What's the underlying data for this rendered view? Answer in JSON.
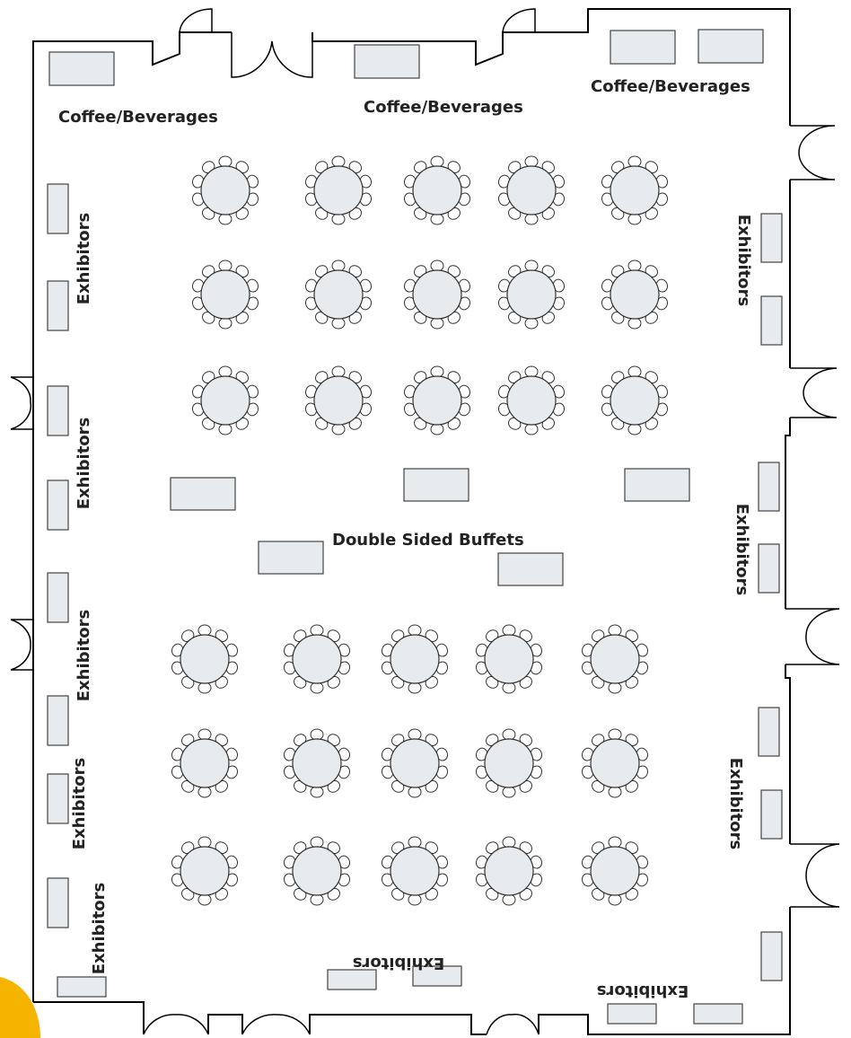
{
  "floor": {
    "labels": {
      "coffee_left": "Coffee/Beverages",
      "coffee_center": "Coffee/Beverages",
      "coffee_right": "Coffee/Beverages",
      "exhibitors_left_1": "Exhibitors",
      "exhibitors_left_2": "Exhibitors",
      "exhibitors_left_3": "Exhibitors",
      "exhibitors_left_4": "Exhibitors",
      "exhibitors_left_5": "Exhibitors",
      "exhibitors_right_1": "Exhibitors",
      "exhibitors_right_2": "Exhibitors",
      "exhibitors_right_3": "Exhibitors",
      "exhibitors_bottom_center": "Exhibitors",
      "exhibitors_bottom_right": "Exhibitors",
      "buffets": "Double Sided Buffets"
    },
    "round_tables": {
      "count": 30,
      "chairs_per_table": 10
    },
    "colors": {
      "table_fill": "#e8ebee",
      "stroke": "#333333",
      "accent": "#f5b400"
    }
  }
}
